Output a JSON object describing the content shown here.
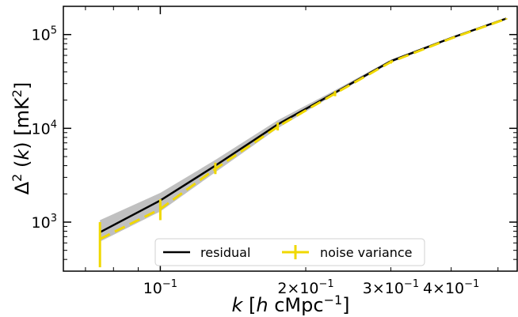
{
  "chart_data": {
    "type": "line",
    "xscale": "log",
    "yscale": "log",
    "xlim": [
      0.063,
      0.55
    ],
    "ylim": [
      300,
      200000
    ],
    "xlabel": "k [h cMpc⁻¹]",
    "ylabel": "Δ² (k) [mK²]",
    "x_ticks": [
      {
        "value": 0.1,
        "label": "10⁻¹"
      },
      {
        "value": 0.2,
        "label": "2×10⁻¹"
      },
      {
        "value": 0.3,
        "label": "3×10⁻¹"
      },
      {
        "value": 0.4,
        "label": "4×10⁻¹"
      }
    ],
    "y_ticks": [
      {
        "value": 1000,
        "label": "10³"
      },
      {
        "value": 10000,
        "label": "10⁴"
      },
      {
        "value": 100000,
        "label": "10⁵"
      }
    ],
    "legend_position": "bottom-center",
    "grid": false,
    "series": [
      {
        "name": "residual",
        "style": "solid",
        "color": "#000000",
        "x": [
          0.075,
          0.1,
          0.13,
          0.175,
          0.23,
          0.3,
          0.4,
          0.52
        ],
        "y": [
          780,
          1700,
          4000,
          11000,
          24000,
          52000,
          92000,
          148000
        ],
        "band_lower": [
          620,
          1300,
          3400,
          10000,
          23000,
          50000,
          90000,
          145000
        ],
        "band_upper": [
          1050,
          2050,
          4600,
          12200,
          25500,
          54000,
          94000,
          151000
        ]
      },
      {
        "name": "noise variance",
        "style": "dashed",
        "color": "#f0d800",
        "x": [
          0.075,
          0.1,
          0.13,
          0.175,
          0.23,
          0.3,
          0.4,
          0.52
        ],
        "y": [
          660,
          1380,
          3700,
          10400,
          23500,
          51000,
          91000,
          147000
        ],
        "err_lower": [
          330,
          1050,
          3250,
          9500,
          22000,
          49000,
          89000,
          145000
        ],
        "err_upper": [
          1000,
          1750,
          4300,
          11500,
          25000,
          53000,
          93000,
          149000
        ]
      }
    ]
  }
}
